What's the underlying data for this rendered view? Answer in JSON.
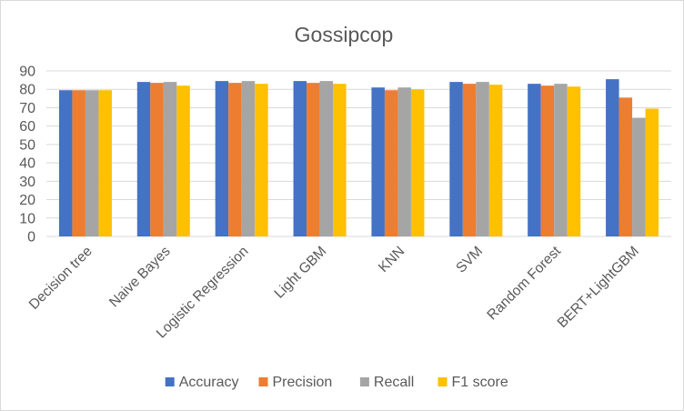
{
  "chart_data": {
    "type": "bar",
    "title": "Gossipcop",
    "xlabel": "",
    "ylabel": "",
    "ylim": [
      0,
      90
    ],
    "yticks": [
      0,
      10,
      20,
      30,
      40,
      50,
      60,
      70,
      80,
      90
    ],
    "grid": true,
    "legend_position": "bottom",
    "categories": [
      "Decision tree",
      "Naive Bayes",
      "Logistic Regression",
      "Light GBM",
      "KNN",
      "SVM",
      "Random Forest",
      "BERT+LightGBM"
    ],
    "series": [
      {
        "name": "Accuracy",
        "color": "#4472C4",
        "values": [
          79.5,
          84.0,
          84.5,
          84.5,
          81.0,
          84.0,
          83.0,
          85.5
        ]
      },
      {
        "name": "Precision",
        "color": "#ED7D31",
        "values": [
          79.5,
          83.5,
          83.5,
          83.5,
          79.5,
          83.0,
          82.0,
          75.5
        ]
      },
      {
        "name": "Recall",
        "color": "#A5A5A5",
        "values": [
          79.5,
          84.0,
          84.5,
          84.5,
          81.0,
          84.0,
          83.0,
          64.5
        ]
      },
      {
        "name": "F1 score",
        "color": "#FFC000",
        "values": [
          79.5,
          82.0,
          83.0,
          83.0,
          80.0,
          82.5,
          81.5,
          69.5
        ]
      }
    ]
  }
}
